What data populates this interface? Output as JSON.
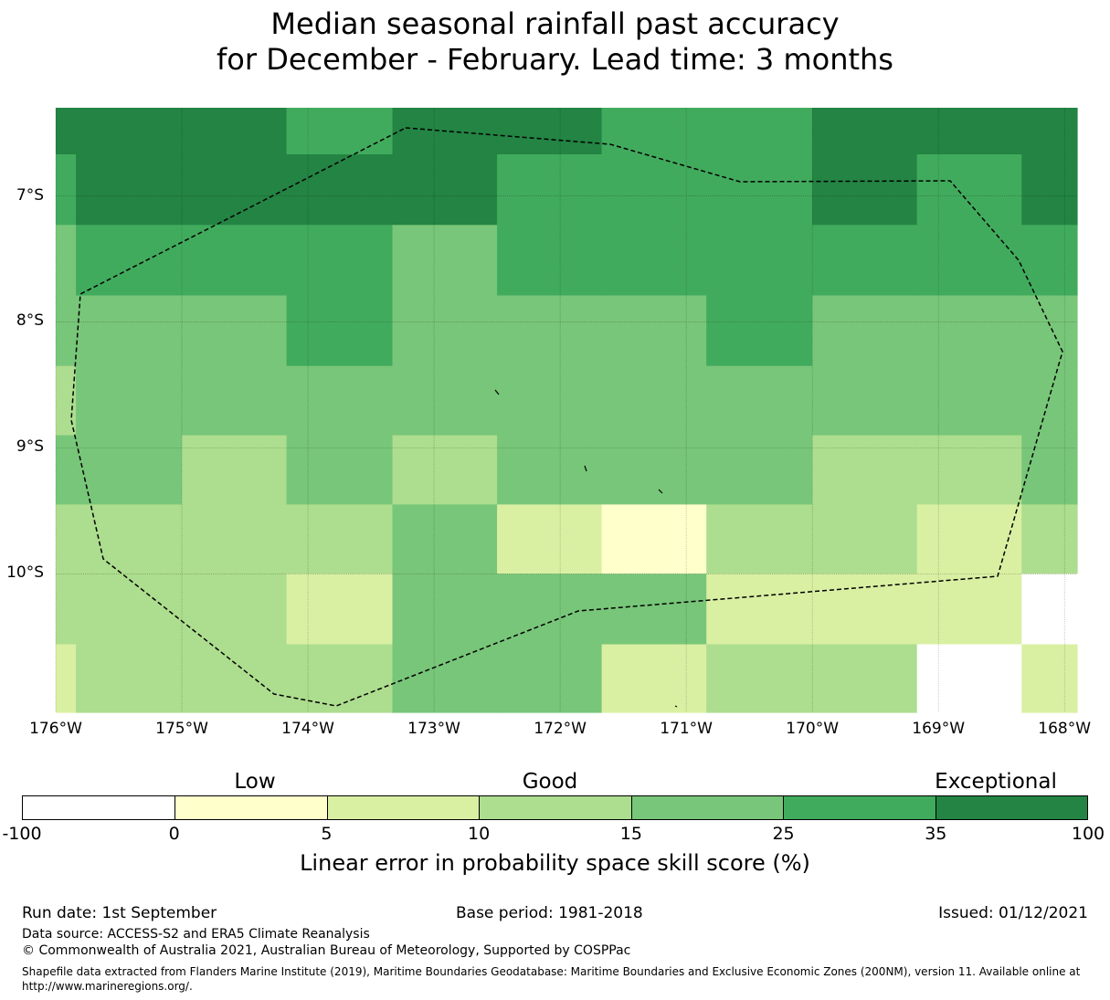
{
  "title": {
    "line1": "Median seasonal rainfall past accuracy",
    "line2": "for December - February. Lead time: 3 months"
  },
  "map": {
    "lon_range": [
      -176,
      -167.9
    ],
    "lat_range": [
      -11.1,
      -6.3
    ],
    "lat_ticks": [
      "7°S",
      "8°S",
      "9°S",
      "10°S"
    ],
    "lon_ticks": [
      "176°W",
      "175°W",
      "174°W",
      "173°W",
      "172°W",
      "171°W",
      "170°W",
      "169°W",
      "168°W"
    ],
    "grid_lines": true,
    "boundary_style": "dashed black",
    "cell_columns_west_edge": [
      -176,
      -175.84,
      -175.0,
      -174.17,
      -173.33,
      -172.5,
      -171.67,
      -170.84,
      -170.0,
      -169.17,
      -168.34,
      -167.9
    ],
    "cell_rows_north_edge": [
      -6.3,
      -6.67,
      -7.23,
      -7.79,
      -8.35,
      -8.9,
      -9.45,
      -10.0,
      -10.56,
      -11.1
    ],
    "cell_classes": [
      [
        6,
        6,
        6,
        5,
        6,
        6,
        5,
        5,
        6,
        6,
        6
      ],
      [
        5,
        6,
        6,
        6,
        6,
        5,
        5,
        5,
        6,
        5,
        6
      ],
      [
        4,
        5,
        5,
        5,
        4,
        5,
        5,
        5,
        5,
        5,
        5
      ],
      [
        4,
        4,
        4,
        5,
        4,
        4,
        4,
        5,
        4,
        4,
        4
      ],
      [
        3,
        4,
        4,
        4,
        4,
        4,
        4,
        4,
        4,
        4,
        4
      ],
      [
        4,
        4,
        3,
        4,
        3,
        4,
        4,
        4,
        3,
        3,
        4
      ],
      [
        3,
        3,
        3,
        3,
        4,
        2,
        1,
        3,
        3,
        2,
        3
      ],
      [
        3,
        3,
        3,
        2,
        4,
        4,
        4,
        2,
        2,
        2,
        0
      ],
      [
        2,
        3,
        3,
        3,
        4,
        4,
        2,
        3,
        3,
        0,
        2
      ]
    ]
  },
  "legend": {
    "categories": [
      "Low",
      "Good",
      "Exceptional"
    ],
    "ticks": [
      "-100",
      "0",
      "5",
      "10",
      "15",
      "25",
      "35",
      "100"
    ],
    "colors": [
      "#ffffff",
      "#ffffcc",
      "#d9f0a3",
      "#addd8e",
      "#78c679",
      "#41ab5d",
      "#238443"
    ],
    "title": "Linear error in probability space skill score (%)"
  },
  "footer": {
    "run_date": "Run date: 1st September",
    "base_period": "Base period: 1981-2018",
    "issued": "Issued: 01/12/2021",
    "data_source": "Data source: ACCESS-S2 and ERA5 Climate Reanalysis",
    "copyright": "© Commonwealth of Australia 2021, Australian Bureau of Meteorology, Supported by COSPPac",
    "shapefile_line1": "Shapefile data extracted from Flanders Marine Institute (2019), Maritime Boundaries Geodatabase: Maritime Boundaries and Exclusive Economic Zones (200NM), version 11. Available online at",
    "shapefile_line2": "http://www.marineregions.org/."
  }
}
